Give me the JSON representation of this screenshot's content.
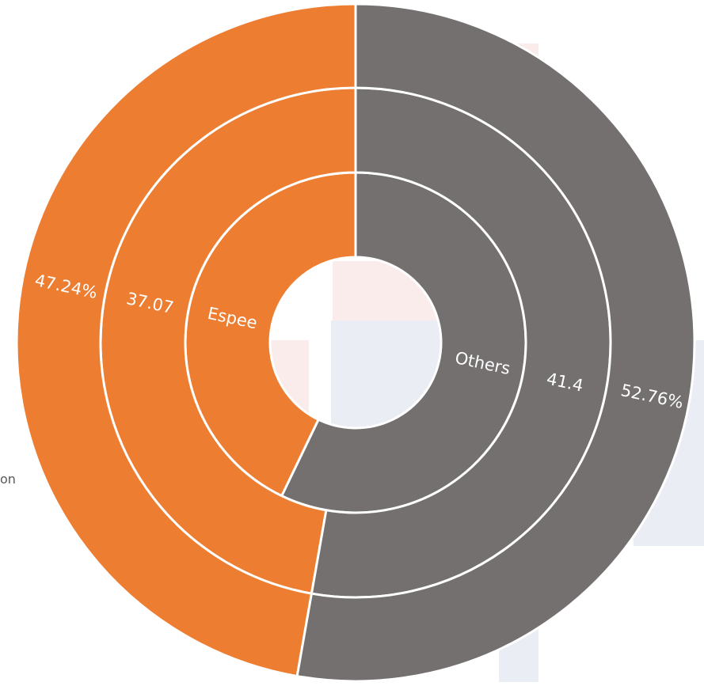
{
  "page": {
    "side_text": "on"
  },
  "colors": {
    "espee": "#ED7D31",
    "others": "#747070",
    "separator": "#ffffff",
    "bg_pink": "#FBECEC",
    "bg_blue": "#EBEDF5"
  },
  "chart_data": {
    "type": "pie",
    "variant": "multi-level donut",
    "categories": [
      "Espee",
      "Others"
    ],
    "rings": [
      {
        "level": "inner",
        "labels": [
          "Espee",
          "Others"
        ],
        "shares": [
          42.86,
          57.14
        ]
      },
      {
        "level": "middle",
        "values": [
          37.07,
          41.4
        ],
        "labels": [
          "37.07",
          "41.4"
        ]
      },
      {
        "level": "outer",
        "values": [
          47.24,
          52.76
        ],
        "labels": [
          "47.24%",
          "52.76%"
        ]
      }
    ],
    "title": "",
    "legend": "none"
  }
}
